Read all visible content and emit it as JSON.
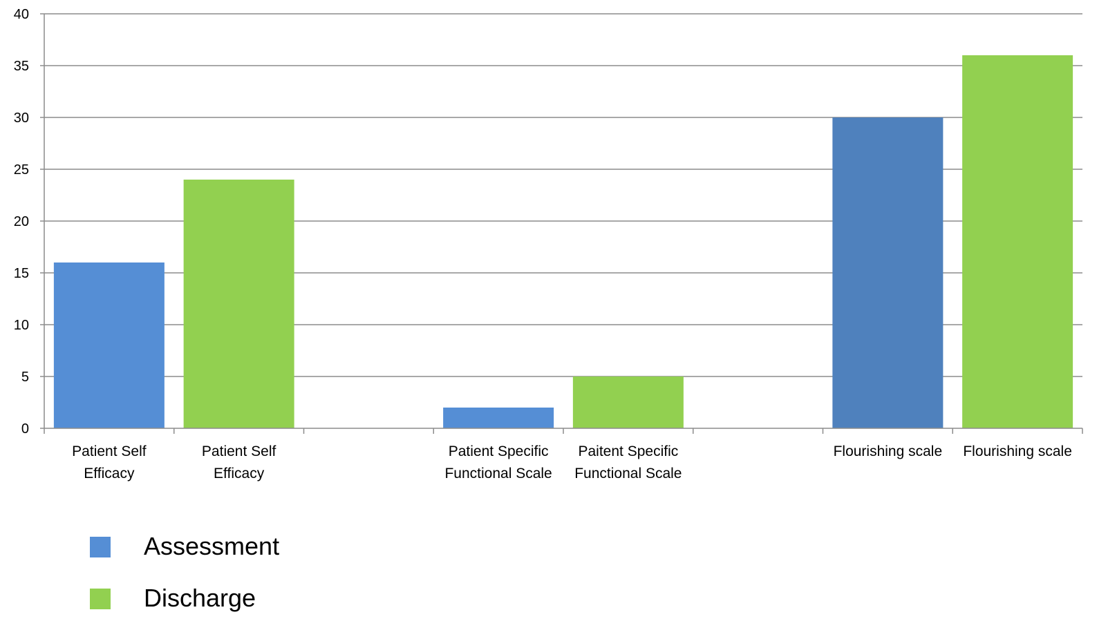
{
  "chart_data": {
    "type": "bar",
    "title": "",
    "xlabel": "",
    "ylabel": "",
    "ylim": [
      0,
      40
    ],
    "yticks": [
      0,
      5,
      10,
      15,
      20,
      25,
      30,
      35,
      40
    ],
    "grid": true,
    "legend_position": "bottom-left",
    "categories": [
      [
        "Patient Self",
        "Efficacy"
      ],
      [
        "Patient Self",
        "Efficacy"
      ],
      [],
      [
        "Patient Specific",
        "Functional Scale"
      ],
      [
        "Paitent Specific",
        "Functional Scale"
      ],
      [],
      [
        "Flourishing scale"
      ],
      [
        "Flourishing scale"
      ]
    ],
    "bars": [
      {
        "category_index": 0,
        "series": "Assessment",
        "value": 16,
        "color": "#558ED5"
      },
      {
        "category_index": 1,
        "series": "Discharge",
        "value": 24,
        "color": "#92D050"
      },
      {
        "category_index": 3,
        "series": "Assessment",
        "value": 2,
        "color": "#558ED5"
      },
      {
        "category_index": 4,
        "series": "Discharge",
        "value": 5,
        "color": "#92D050"
      },
      {
        "category_index": 6,
        "series": "Assessment",
        "value": 30,
        "color": "#4F81BD"
      },
      {
        "category_index": 7,
        "series": "Discharge",
        "value": 36,
        "color": "#92D050"
      }
    ],
    "legend": [
      {
        "name": "Assessment",
        "color": "#558ED5"
      },
      {
        "name": "Discharge",
        "color": "#92D050"
      }
    ]
  }
}
